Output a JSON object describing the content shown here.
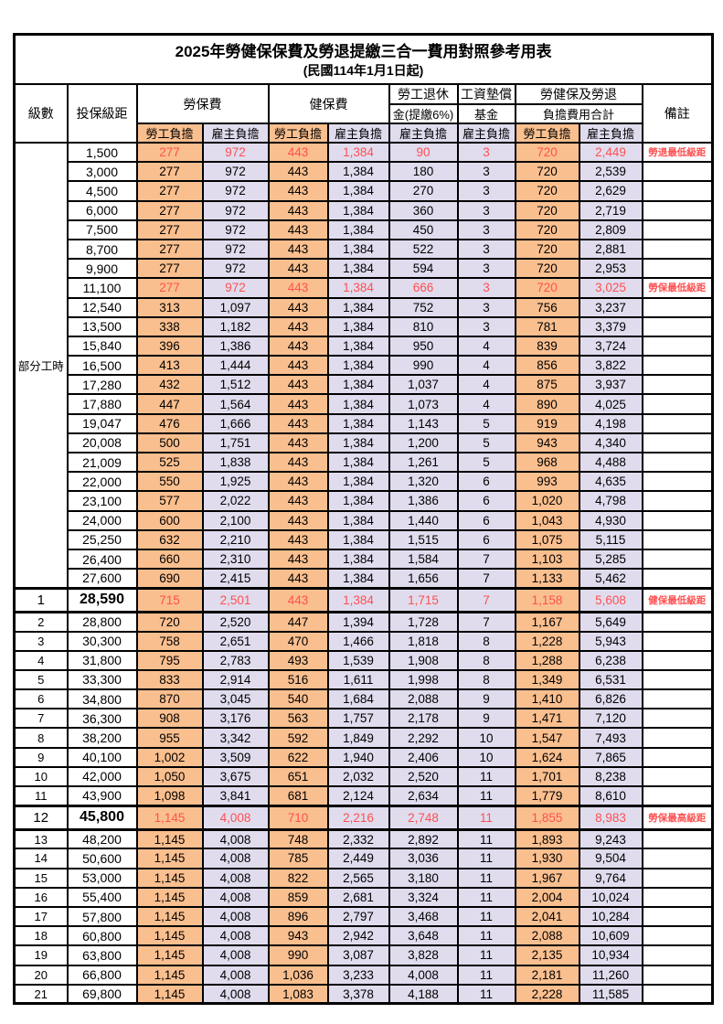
{
  "title": "2025年勞健保保費及勞退提繳三合一費用對照參考用表",
  "subtitle": "(民國114年1月1日起)",
  "colors": {
    "employee_bg": "#FABF8F",
    "employer_bg": "#E0DCEE",
    "highlight_red": "#FF5050",
    "border": "#000000"
  },
  "header": {
    "level": "級數",
    "bracket": "投保級距",
    "labor": "勞保費",
    "health": "健保費",
    "pension1": "勞工退休",
    "pension2": "金(提繳6%)",
    "fund1": "工資墊償",
    "fund2": "基金",
    "total1": "勞健保及勞退",
    "total2": "負擔費用合計",
    "remark": "備註",
    "employee": "勞工負擔",
    "employer": "雇主負擔"
  },
  "section": {
    "label": "部分工時",
    "span": 23
  },
  "value_column_keys": [
    "labor-employee",
    "labor-employer",
    "health-employee",
    "health-employer",
    "pension-employer",
    "fund-employer",
    "total-employee",
    "total-employer"
  ],
  "rows": [
    {
      "level": "",
      "bracket": "1,500",
      "v": [
        "277",
        "972",
        "443",
        "1,384",
        "90",
        "3",
        "720",
        "2,449"
      ],
      "remark": "勞退最低級距",
      "red": true,
      "em": false
    },
    {
      "level": "",
      "bracket": "3,000",
      "v": [
        "277",
        "972",
        "443",
        "1,384",
        "180",
        "3",
        "720",
        "2,539"
      ],
      "remark": "",
      "red": false,
      "em": false
    },
    {
      "level": "",
      "bracket": "4,500",
      "v": [
        "277",
        "972",
        "443",
        "1,384",
        "270",
        "3",
        "720",
        "2,629"
      ],
      "remark": "",
      "red": false,
      "em": false
    },
    {
      "level": "",
      "bracket": "6,000",
      "v": [
        "277",
        "972",
        "443",
        "1,384",
        "360",
        "3",
        "720",
        "2,719"
      ],
      "remark": "",
      "red": false,
      "em": false
    },
    {
      "level": "",
      "bracket": "7,500",
      "v": [
        "277",
        "972",
        "443",
        "1,384",
        "450",
        "3",
        "720",
        "2,809"
      ],
      "remark": "",
      "red": false,
      "em": false
    },
    {
      "level": "",
      "bracket": "8,700",
      "v": [
        "277",
        "972",
        "443",
        "1,384",
        "522",
        "3",
        "720",
        "2,881"
      ],
      "remark": "",
      "red": false,
      "em": false
    },
    {
      "level": "",
      "bracket": "9,900",
      "v": [
        "277",
        "972",
        "443",
        "1,384",
        "594",
        "3",
        "720",
        "2,953"
      ],
      "remark": "",
      "red": false,
      "em": false
    },
    {
      "level": "",
      "bracket": "11,100",
      "v": [
        "277",
        "972",
        "443",
        "1,384",
        "666",
        "3",
        "720",
        "3,025"
      ],
      "remark": "勞保最低級距",
      "red": true,
      "em": false
    },
    {
      "level": "",
      "bracket": "12,540",
      "v": [
        "313",
        "1,097",
        "443",
        "1,384",
        "752",
        "3",
        "756",
        "3,237"
      ],
      "remark": "",
      "red": false,
      "em": false
    },
    {
      "level": "",
      "bracket": "13,500",
      "v": [
        "338",
        "1,182",
        "443",
        "1,384",
        "810",
        "3",
        "781",
        "3,379"
      ],
      "remark": "",
      "red": false,
      "em": false
    },
    {
      "level": "",
      "bracket": "15,840",
      "v": [
        "396",
        "1,386",
        "443",
        "1,384",
        "950",
        "4",
        "839",
        "3,724"
      ],
      "remark": "",
      "red": false,
      "em": false
    },
    {
      "level": "",
      "bracket": "16,500",
      "v": [
        "413",
        "1,444",
        "443",
        "1,384",
        "990",
        "4",
        "856",
        "3,822"
      ],
      "remark": "",
      "red": false,
      "em": false
    },
    {
      "level": "",
      "bracket": "17,280",
      "v": [
        "432",
        "1,512",
        "443",
        "1,384",
        "1,037",
        "4",
        "875",
        "3,937"
      ],
      "remark": "",
      "red": false,
      "em": false
    },
    {
      "level": "",
      "bracket": "17,880",
      "v": [
        "447",
        "1,564",
        "443",
        "1,384",
        "1,073",
        "4",
        "890",
        "4,025"
      ],
      "remark": "",
      "red": false,
      "em": false
    },
    {
      "level": "",
      "bracket": "19,047",
      "v": [
        "476",
        "1,666",
        "443",
        "1,384",
        "1,143",
        "5",
        "919",
        "4,198"
      ],
      "remark": "",
      "red": false,
      "em": false
    },
    {
      "level": "",
      "bracket": "20,008",
      "v": [
        "500",
        "1,751",
        "443",
        "1,384",
        "1,200",
        "5",
        "943",
        "4,340"
      ],
      "remark": "",
      "red": false,
      "em": false
    },
    {
      "level": "",
      "bracket": "21,009",
      "v": [
        "525",
        "1,838",
        "443",
        "1,384",
        "1,261",
        "5",
        "968",
        "4,488"
      ],
      "remark": "",
      "red": false,
      "em": false
    },
    {
      "level": "",
      "bracket": "22,000",
      "v": [
        "550",
        "1,925",
        "443",
        "1,384",
        "1,320",
        "6",
        "993",
        "4,635"
      ],
      "remark": "",
      "red": false,
      "em": false
    },
    {
      "level": "",
      "bracket": "23,100",
      "v": [
        "577",
        "2,022",
        "443",
        "1,384",
        "1,386",
        "6",
        "1,020",
        "4,798"
      ],
      "remark": "",
      "red": false,
      "em": false
    },
    {
      "level": "",
      "bracket": "24,000",
      "v": [
        "600",
        "2,100",
        "443",
        "1,384",
        "1,440",
        "6",
        "1,043",
        "4,930"
      ],
      "remark": "",
      "red": false,
      "em": false
    },
    {
      "level": "",
      "bracket": "25,250",
      "v": [
        "632",
        "2,210",
        "443",
        "1,384",
        "1,515",
        "6",
        "1,075",
        "5,115"
      ],
      "remark": "",
      "red": false,
      "em": false
    },
    {
      "level": "",
      "bracket": "26,400",
      "v": [
        "660",
        "2,310",
        "443",
        "1,384",
        "1,584",
        "7",
        "1,103",
        "5,285"
      ],
      "remark": "",
      "red": false,
      "em": false
    },
    {
      "level": "",
      "bracket": "27,600",
      "v": [
        "690",
        "2,415",
        "443",
        "1,384",
        "1,656",
        "7",
        "1,133",
        "5,462"
      ],
      "remark": "",
      "red": false,
      "em": false
    },
    {
      "level": "1",
      "bracket": "28,590",
      "v": [
        "715",
        "2,501",
        "443",
        "1,384",
        "1,715",
        "7",
        "1,158",
        "5,608"
      ],
      "remark": "健保最低級距",
      "red": true,
      "em": true
    },
    {
      "level": "2",
      "bracket": "28,800",
      "v": [
        "720",
        "2,520",
        "447",
        "1,394",
        "1,728",
        "7",
        "1,167",
        "5,649"
      ],
      "remark": "",
      "red": false,
      "em": false
    },
    {
      "level": "3",
      "bracket": "30,300",
      "v": [
        "758",
        "2,651",
        "470",
        "1,466",
        "1,818",
        "8",
        "1,228",
        "5,943"
      ],
      "remark": "",
      "red": false,
      "em": false
    },
    {
      "level": "4",
      "bracket": "31,800",
      "v": [
        "795",
        "2,783",
        "493",
        "1,539",
        "1,908",
        "8",
        "1,288",
        "6,238"
      ],
      "remark": "",
      "red": false,
      "em": false
    },
    {
      "level": "5",
      "bracket": "33,300",
      "v": [
        "833",
        "2,914",
        "516",
        "1,611",
        "1,998",
        "8",
        "1,349",
        "6,531"
      ],
      "remark": "",
      "red": false,
      "em": false
    },
    {
      "level": "6",
      "bracket": "34,800",
      "v": [
        "870",
        "3,045",
        "540",
        "1,684",
        "2,088",
        "9",
        "1,410",
        "6,826"
      ],
      "remark": "",
      "red": false,
      "em": false
    },
    {
      "level": "7",
      "bracket": "36,300",
      "v": [
        "908",
        "3,176",
        "563",
        "1,757",
        "2,178",
        "9",
        "1,471",
        "7,120"
      ],
      "remark": "",
      "red": false,
      "em": false
    },
    {
      "level": "8",
      "bracket": "38,200",
      "v": [
        "955",
        "3,342",
        "592",
        "1,849",
        "2,292",
        "10",
        "1,547",
        "7,493"
      ],
      "remark": "",
      "red": false,
      "em": false
    },
    {
      "level": "9",
      "bracket": "40,100",
      "v": [
        "1,002",
        "3,509",
        "622",
        "1,940",
        "2,406",
        "10",
        "1,624",
        "7,865"
      ],
      "remark": "",
      "red": false,
      "em": false
    },
    {
      "level": "10",
      "bracket": "42,000",
      "v": [
        "1,050",
        "3,675",
        "651",
        "2,032",
        "2,520",
        "11",
        "1,701",
        "8,238"
      ],
      "remark": "",
      "red": false,
      "em": false
    },
    {
      "level": "11",
      "bracket": "43,900",
      "v": [
        "1,098",
        "3,841",
        "681",
        "2,124",
        "2,634",
        "11",
        "1,779",
        "8,610"
      ],
      "remark": "",
      "red": false,
      "em": false
    },
    {
      "level": "12",
      "bracket": "45,800",
      "v": [
        "1,145",
        "4,008",
        "710",
        "2,216",
        "2,748",
        "11",
        "1,855",
        "8,983"
      ],
      "remark": "勞保最高級距",
      "red": true,
      "em": true
    },
    {
      "level": "13",
      "bracket": "48,200",
      "v": [
        "1,145",
        "4,008",
        "748",
        "2,332",
        "2,892",
        "11",
        "1,893",
        "9,243"
      ],
      "remark": "",
      "red": false,
      "em": false
    },
    {
      "level": "14",
      "bracket": "50,600",
      "v": [
        "1,145",
        "4,008",
        "785",
        "2,449",
        "3,036",
        "11",
        "1,930",
        "9,504"
      ],
      "remark": "",
      "red": false,
      "em": false
    },
    {
      "level": "15",
      "bracket": "53,000",
      "v": [
        "1,145",
        "4,008",
        "822",
        "2,565",
        "3,180",
        "11",
        "1,967",
        "9,764"
      ],
      "remark": "",
      "red": false,
      "em": false
    },
    {
      "level": "16",
      "bracket": "55,400",
      "v": [
        "1,145",
        "4,008",
        "859",
        "2,681",
        "3,324",
        "11",
        "2,004",
        "10,024"
      ],
      "remark": "",
      "red": false,
      "em": false
    },
    {
      "level": "17",
      "bracket": "57,800",
      "v": [
        "1,145",
        "4,008",
        "896",
        "2,797",
        "3,468",
        "11",
        "2,041",
        "10,284"
      ],
      "remark": "",
      "red": false,
      "em": false
    },
    {
      "level": "18",
      "bracket": "60,800",
      "v": [
        "1,145",
        "4,008",
        "943",
        "2,942",
        "3,648",
        "11",
        "2,088",
        "10,609"
      ],
      "remark": "",
      "red": false,
      "em": false
    },
    {
      "level": "19",
      "bracket": "63,800",
      "v": [
        "1,145",
        "4,008",
        "990",
        "3,087",
        "3,828",
        "11",
        "2,135",
        "10,934"
      ],
      "remark": "",
      "red": false,
      "em": false
    },
    {
      "level": "20",
      "bracket": "66,800",
      "v": [
        "1,145",
        "4,008",
        "1,036",
        "3,233",
        "4,008",
        "11",
        "2,181",
        "11,260"
      ],
      "remark": "",
      "red": false,
      "em": false
    },
    {
      "level": "21",
      "bracket": "69,800",
      "v": [
        "1,145",
        "4,008",
        "1,083",
        "3,378",
        "4,188",
        "11",
        "2,228",
        "11,585"
      ],
      "remark": "",
      "red": false,
      "em": false
    }
  ]
}
